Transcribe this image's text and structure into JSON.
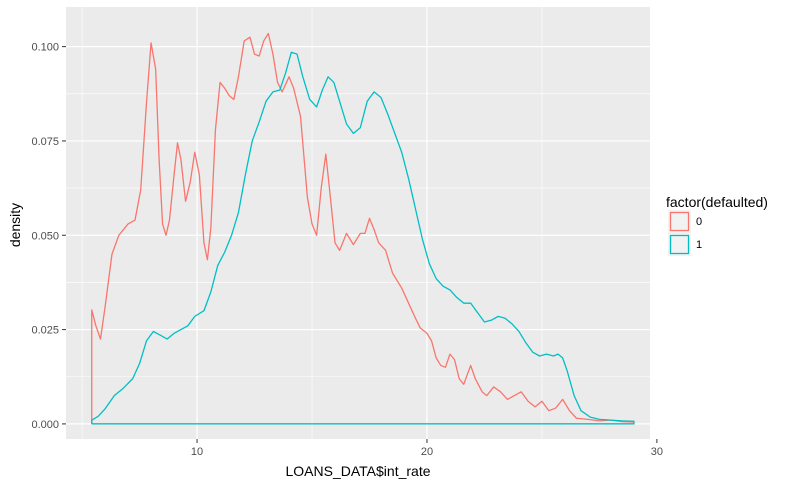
{
  "chart_data": {
    "type": "line",
    "title": "",
    "xlabel": "LOANS_DATA$int_rate",
    "ylabel": "density",
    "xlim": [
      4.3,
      29.7
    ],
    "ylim": [
      -0.004,
      0.1105
    ],
    "x_ticks": [
      10,
      20,
      30
    ],
    "y_ticks": [
      0.0,
      0.025,
      0.05,
      0.075,
      0.1
    ],
    "x_tick_labels": [
      "10",
      "20",
      "30"
    ],
    "y_tick_labels": [
      "0.000",
      "0.025",
      "0.050",
      "0.075",
      "0.100"
    ],
    "grid": true,
    "legend": {
      "title": "factor(defaulted)",
      "placement": "right"
    },
    "series": [
      {
        "name": "0",
        "color": "#F8766D",
        "points": [
          [
            5.42,
            0.0
          ],
          [
            5.42,
            0.0302
          ],
          [
            5.6,
            0.026
          ],
          [
            5.8,
            0.0225
          ],
          [
            6.0,
            0.031
          ],
          [
            6.3,
            0.045
          ],
          [
            6.6,
            0.05
          ],
          [
            7.0,
            0.053
          ],
          [
            7.3,
            0.054
          ],
          [
            7.55,
            0.062
          ],
          [
            7.8,
            0.085
          ],
          [
            8.0,
            0.101
          ],
          [
            8.2,
            0.094
          ],
          [
            8.35,
            0.07
          ],
          [
            8.5,
            0.053
          ],
          [
            8.65,
            0.05
          ],
          [
            8.8,
            0.054
          ],
          [
            9.0,
            0.066
          ],
          [
            9.15,
            0.0745
          ],
          [
            9.3,
            0.07
          ],
          [
            9.5,
            0.059
          ],
          [
            9.7,
            0.064
          ],
          [
            9.9,
            0.072
          ],
          [
            10.1,
            0.066
          ],
          [
            10.3,
            0.048
          ],
          [
            10.45,
            0.0435
          ],
          [
            10.6,
            0.052
          ],
          [
            10.8,
            0.078
          ],
          [
            11.0,
            0.0905
          ],
          [
            11.2,
            0.089
          ],
          [
            11.4,
            0.087
          ],
          [
            11.6,
            0.086
          ],
          [
            11.8,
            0.092
          ],
          [
            12.05,
            0.1015
          ],
          [
            12.3,
            0.1025
          ],
          [
            12.5,
            0.098
          ],
          [
            12.7,
            0.0975
          ],
          [
            12.9,
            0.1015
          ],
          [
            13.1,
            0.1035
          ],
          [
            13.3,
            0.098
          ],
          [
            13.5,
            0.0905
          ],
          [
            13.7,
            0.088
          ],
          [
            14.0,
            0.092
          ],
          [
            14.2,
            0.089
          ],
          [
            14.5,
            0.0815
          ],
          [
            14.8,
            0.06
          ],
          [
            15.0,
            0.053
          ],
          [
            15.2,
            0.05
          ],
          [
            15.4,
            0.0625
          ],
          [
            15.6,
            0.0715
          ],
          [
            15.8,
            0.06
          ],
          [
            16.0,
            0.048
          ],
          [
            16.2,
            0.046
          ],
          [
            16.5,
            0.0505
          ],
          [
            16.8,
            0.0475
          ],
          [
            17.1,
            0.0505
          ],
          [
            17.3,
            0.0505
          ],
          [
            17.5,
            0.0545
          ],
          [
            17.7,
            0.0515
          ],
          [
            17.9,
            0.048
          ],
          [
            18.2,
            0.046
          ],
          [
            18.5,
            0.04
          ],
          [
            18.9,
            0.036
          ],
          [
            19.2,
            0.032
          ],
          [
            19.5,
            0.028
          ],
          [
            19.7,
            0.0255
          ],
          [
            20.0,
            0.024
          ],
          [
            20.2,
            0.022
          ],
          [
            20.4,
            0.0175
          ],
          [
            20.6,
            0.0155
          ],
          [
            20.8,
            0.015
          ],
          [
            21.0,
            0.0185
          ],
          [
            21.2,
            0.017
          ],
          [
            21.4,
            0.012
          ],
          [
            21.6,
            0.0105
          ],
          [
            21.9,
            0.0155
          ],
          [
            22.1,
            0.012
          ],
          [
            22.4,
            0.0085
          ],
          [
            22.6,
            0.0075
          ],
          [
            22.9,
            0.0098
          ],
          [
            23.2,
            0.0085
          ],
          [
            23.5,
            0.0065
          ],
          [
            23.8,
            0.0075
          ],
          [
            24.1,
            0.0085
          ],
          [
            24.4,
            0.006
          ],
          [
            24.7,
            0.0045
          ],
          [
            25.0,
            0.006
          ],
          [
            25.3,
            0.0035
          ],
          [
            25.6,
            0.0042
          ],
          [
            25.9,
            0.0065
          ],
          [
            26.2,
            0.0035
          ],
          [
            26.5,
            0.0015
          ],
          [
            27.0,
            0.0012
          ],
          [
            27.5,
            0.0008
          ],
          [
            28.0,
            0.001
          ],
          [
            28.5,
            0.0006
          ],
          [
            29.0,
            0.0005
          ],
          [
            29.0,
            0.0
          ],
          [
            5.42,
            0.0
          ]
        ]
      },
      {
        "name": "1",
        "color": "#00BFC4",
        "points": [
          [
            5.42,
            0.0
          ],
          [
            5.42,
            0.001
          ],
          [
            5.7,
            0.002
          ],
          [
            6.0,
            0.004
          ],
          [
            6.4,
            0.0075
          ],
          [
            6.8,
            0.0095
          ],
          [
            7.2,
            0.012
          ],
          [
            7.5,
            0.016
          ],
          [
            7.8,
            0.022
          ],
          [
            8.1,
            0.0245
          ],
          [
            8.4,
            0.0235
          ],
          [
            8.7,
            0.0225
          ],
          [
            9.0,
            0.024
          ],
          [
            9.3,
            0.025
          ],
          [
            9.6,
            0.026
          ],
          [
            9.9,
            0.0285
          ],
          [
            10.3,
            0.03
          ],
          [
            10.6,
            0.035
          ],
          [
            10.9,
            0.042
          ],
          [
            11.2,
            0.0455
          ],
          [
            11.5,
            0.05
          ],
          [
            11.8,
            0.056
          ],
          [
            12.1,
            0.066
          ],
          [
            12.4,
            0.075
          ],
          [
            12.7,
            0.08
          ],
          [
            13.0,
            0.0855
          ],
          [
            13.3,
            0.088
          ],
          [
            13.6,
            0.0885
          ],
          [
            13.85,
            0.093
          ],
          [
            14.1,
            0.0985
          ],
          [
            14.35,
            0.098
          ],
          [
            14.6,
            0.092
          ],
          [
            14.9,
            0.086
          ],
          [
            15.2,
            0.084
          ],
          [
            15.45,
            0.0885
          ],
          [
            15.7,
            0.092
          ],
          [
            15.95,
            0.0905
          ],
          [
            16.2,
            0.0855
          ],
          [
            16.5,
            0.0795
          ],
          [
            16.8,
            0.077
          ],
          [
            17.1,
            0.0785
          ],
          [
            17.4,
            0.0855
          ],
          [
            17.7,
            0.088
          ],
          [
            18.0,
            0.0865
          ],
          [
            18.3,
            0.082
          ],
          [
            18.6,
            0.077
          ],
          [
            18.9,
            0.072
          ],
          [
            19.2,
            0.065
          ],
          [
            19.5,
            0.057
          ],
          [
            19.8,
            0.049
          ],
          [
            20.1,
            0.0425
          ],
          [
            20.4,
            0.0385
          ],
          [
            20.7,
            0.0365
          ],
          [
            21.0,
            0.0355
          ],
          [
            21.3,
            0.0335
          ],
          [
            21.6,
            0.032
          ],
          [
            21.9,
            0.032
          ],
          [
            22.2,
            0.0295
          ],
          [
            22.5,
            0.027
          ],
          [
            22.8,
            0.0275
          ],
          [
            23.1,
            0.0285
          ],
          [
            23.4,
            0.028
          ],
          [
            23.7,
            0.0265
          ],
          [
            24.0,
            0.0245
          ],
          [
            24.3,
            0.0215
          ],
          [
            24.6,
            0.019
          ],
          [
            24.9,
            0.018
          ],
          [
            25.2,
            0.0185
          ],
          [
            25.5,
            0.018
          ],
          [
            25.7,
            0.0185
          ],
          [
            25.9,
            0.0175
          ],
          [
            26.1,
            0.014
          ],
          [
            26.4,
            0.0075
          ],
          [
            26.7,
            0.0035
          ],
          [
            27.1,
            0.0018
          ],
          [
            27.5,
            0.0012
          ],
          [
            28.0,
            0.001
          ],
          [
            28.5,
            0.0008
          ],
          [
            29.0,
            0.0007
          ],
          [
            29.0,
            0.0
          ],
          [
            5.42,
            0.0
          ]
        ]
      }
    ]
  }
}
